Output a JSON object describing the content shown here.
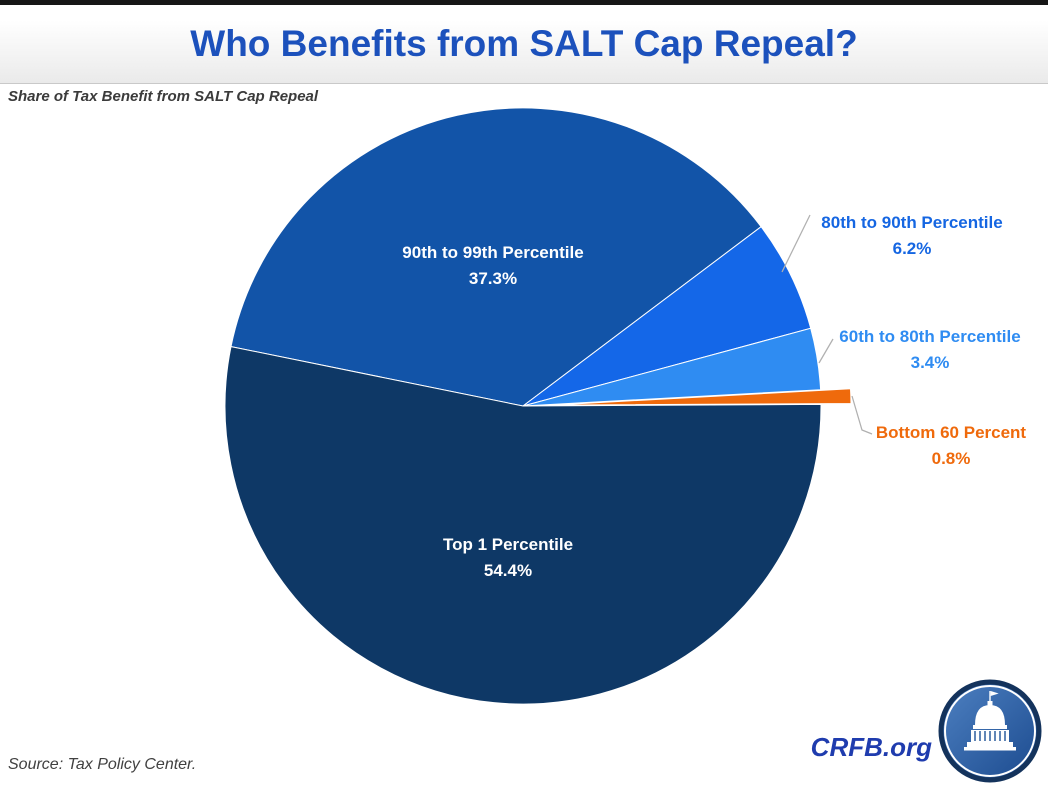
{
  "page": {
    "title": "Who Benefits from SALT Cap Repeal?",
    "subtitle": "Share of Tax Benefit from SALT Cap Repeal",
    "source": "Source: Tax Policy Center.",
    "brand": "CRFB.org"
  },
  "colors": {
    "title_blue": "#1C51BC",
    "brand_blue": "#1F3CAE",
    "leader_gray": "#B0B0B0",
    "top_bar": "#161616"
  },
  "chart_data": {
    "type": "pie",
    "title": "Share of Tax Benefit from SALT Cap Repeal",
    "start_angle_deg": 168.5,
    "direction": "clockwise",
    "legend_position": "none",
    "slices": [
      {
        "label": "90th to 99th Percentile",
        "value": 37.3,
        "pct_label": "37.3%",
        "color": "#1254A8",
        "label_placement": "inside",
        "exploded": false
      },
      {
        "label": "80th to 90th Percentile",
        "value": 6.2,
        "pct_label": "6.2%",
        "color": "#1467E8",
        "label_placement": "outside",
        "exploded": false
      },
      {
        "label": "60th to 80th Percentile",
        "value": 3.4,
        "pct_label": "3.4%",
        "color": "#2F8CF2",
        "label_placement": "outside",
        "exploded": false
      },
      {
        "label": "Bottom 60 Percent",
        "value": 0.8,
        "pct_label": "0.8%",
        "color": "#EF6A0C",
        "label_placement": "outside",
        "exploded": true
      },
      {
        "label": "Top 1 Percentile",
        "value": 54.4,
        "pct_label": "54.4%",
        "color": "#0E3866",
        "label_placement": "inside",
        "exploded": false
      }
    ]
  },
  "logo": {
    "icon": "capitol-icon"
  }
}
